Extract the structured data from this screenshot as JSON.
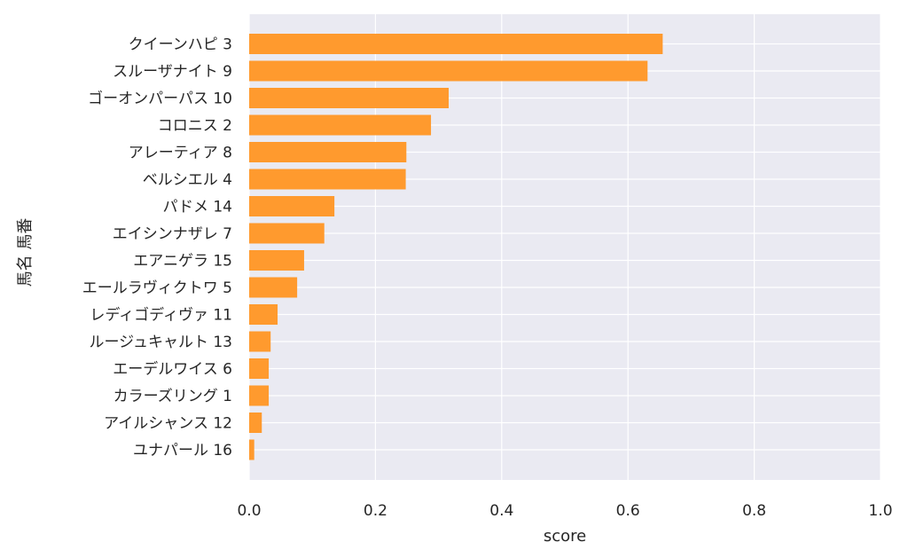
{
  "chart_data": {
    "type": "bar",
    "orientation": "horizontal",
    "title": "",
    "xlabel": "score",
    "ylabel": "馬名 馬番",
    "xlim": [
      0.0,
      1.0
    ],
    "xticks": [
      "0.0",
      "0.2",
      "0.4",
      "0.6",
      "0.8",
      "1.0"
    ],
    "grid": true,
    "bar_color": "#ff9a2e",
    "background_color": "#eaeaf2",
    "categories": [
      "クイーンハピ 3",
      "スルーザナイト 9",
      "ゴーオンパーパス 10",
      "コロニス 2",
      "アレーティア 8",
      "ベルシエル 4",
      "パドメ 14",
      "エイシンナザレ 7",
      "エアニゲラ 15",
      "エールラヴィクトワ 5",
      "レディゴディヴァ 11",
      "ルージュキャルト 13",
      "エーデルワイス 6",
      "カラーズリング 1",
      "アイルシャンス 12",
      "ユナパール 16"
    ],
    "values": [
      0.655,
      0.631,
      0.316,
      0.288,
      0.249,
      0.248,
      0.135,
      0.119,
      0.087,
      0.076,
      0.045,
      0.034,
      0.031,
      0.031,
      0.02,
      0.008
    ]
  }
}
